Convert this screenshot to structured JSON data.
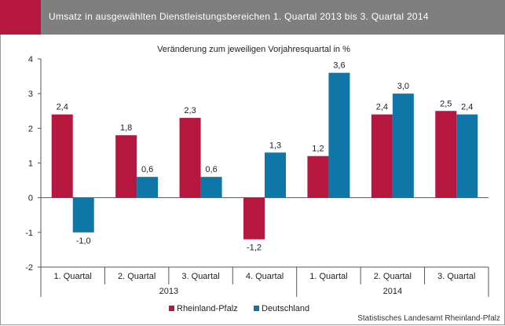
{
  "header": {
    "title": "Umsatz in ausgewählten Dienstleistungsbereichen 1. Quartal 2013 bis 3. Quartal 2014",
    "accent_color": "#b5173f",
    "background_color": "#7f7f7f"
  },
  "chart_data": {
    "type": "bar",
    "title": "Veränderung zum jeweiligen Vorjahresquartal  in %",
    "categories": [
      "1. Quartal",
      "2. Quartal",
      "3. Quartal",
      "4. Quartal",
      "1. Quartal",
      "2. Quartal",
      "3. Quartal"
    ],
    "year_groups": [
      {
        "label": "2013",
        "count": 4
      },
      {
        "label": "2014",
        "count": 3
      }
    ],
    "series": [
      {
        "name": "Rheinland-Pfalz",
        "color": "#b5173f",
        "values": [
          2.4,
          1.8,
          2.3,
          -1.2,
          1.2,
          2.4,
          2.5
        ],
        "labels": [
          "2,4",
          "1,8",
          "2,3",
          "-1,2",
          "1,2",
          "2,4",
          "2,5"
        ]
      },
      {
        "name": "Deutschland",
        "color": "#0f76a8",
        "values": [
          -1.0,
          0.6,
          0.6,
          1.3,
          3.6,
          3.0,
          2.4
        ],
        "labels": [
          "-1,0",
          "0,6",
          "0,6",
          "1,3",
          "3,6",
          "3,0",
          "2,4"
        ]
      }
    ],
    "yticks": [
      "4",
      "3",
      "2",
      "1",
      "0",
      "-1",
      "-2"
    ],
    "ylim": [
      -2,
      4
    ],
    "legend_position": "bottom",
    "source": "Statistisches Landesamt Rheinland-Pfalz"
  }
}
